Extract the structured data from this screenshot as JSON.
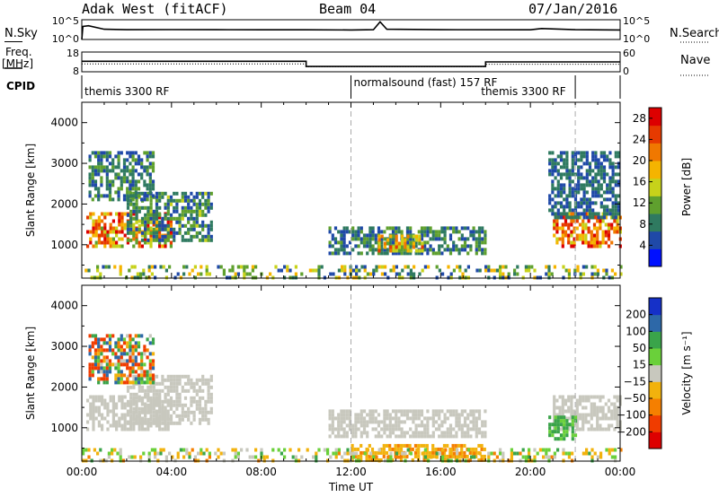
{
  "header": {
    "station": "Adak West (fitACF)",
    "beam": "Beam 04",
    "date": "07/Jan/2016"
  },
  "left_labels": {
    "nsky": "N.Sky",
    "freq": "Freq.",
    "mhz": "[MHz]",
    "cpid": "CPID"
  },
  "right_labels": {
    "nsearch": "N.Search",
    "nave": "Nave"
  },
  "noise_axis": {
    "left_ticks": [
      "10^5",
      "10^0"
    ],
    "right_ticks": [
      "10^5",
      "10^0"
    ]
  },
  "freq_axis": {
    "left_ticks": [
      "18",
      "8"
    ],
    "right_ticks": [
      "60",
      "0"
    ]
  },
  "cpid_segments": [
    {
      "label": "themis 3300 RF"
    },
    {
      "label": "normalsound (fast) 157 RF"
    },
    {
      "label": "themis 3300 RF"
    }
  ],
  "x_axis": {
    "title": "Time UT",
    "ticks": [
      "00:00",
      "04:00",
      "08:00",
      "12:00",
      "16:00",
      "20:00",
      "00:00"
    ]
  },
  "colors": {
    "power": [
      "#0010ff",
      "#1f49a8",
      "#2f7a60",
      "#5fa02e",
      "#c7d21a",
      "#f5b400",
      "#f07800",
      "#e63a00",
      "#dd0000"
    ],
    "velocity": [
      "#dd0000",
      "#f03c00",
      "#f57f00",
      "#f2b20d",
      "#c8c8be",
      "#6ad03a",
      "#3aa44a",
      "#2d68a8",
      "#1530c8"
    ]
  },
  "chart_data": [
    {
      "type": "line",
      "panel": "noise",
      "ylabel_left": "N.Sky",
      "ylabel_right": "N.Search",
      "scale": "log",
      "ylim": [
        1,
        100000
      ],
      "series": [
        {
          "name": "N.Sky",
          "style": "solid",
          "x": [
            0.0,
            0.05,
            0.3,
            1.0,
            2.0,
            4.0,
            6.0,
            8.0,
            10.0,
            12.0,
            13.0,
            13.3,
            13.6,
            16.0,
            20.0,
            20.5,
            22.0,
            24.0
          ],
          "y": [
            1,
            2000,
            3000,
            400,
            300,
            320,
            300,
            280,
            280,
            260,
            300,
            30000,
            400,
            300,
            280,
            600,
            300,
            250
          ]
        },
        {
          "name": "N.Search",
          "style": "dotted",
          "x": [
            0.0,
            24.0
          ],
          "y": [
            1,
            1
          ]
        }
      ]
    },
    {
      "type": "line",
      "panel": "frequency",
      "ylabel_left": "Freq. [MHz]",
      "ylabel_right": "Nave",
      "ylim": [
        8,
        18
      ],
      "series": [
        {
          "name": "Freq.",
          "style": "solid",
          "x": [
            0.0,
            10.0,
            10.0,
            18.0,
            18.0,
            24.0
          ],
          "y": [
            13.3,
            13.3,
            10.7,
            10.7,
            13.0,
            13.0
          ]
        },
        {
          "name": "Nave",
          "style": "dotted",
          "x": [
            0.0,
            10.0,
            10.0,
            18.0,
            18.0,
            24.0
          ],
          "y": [
            12.0,
            12.0,
            10.5,
            10.5,
            11.8,
            11.8
          ]
        }
      ]
    },
    {
      "type": "heatmap",
      "panel": "power",
      "ylabel": "Slant Range [km]",
      "xlabel": "Time UT",
      "xlim": [
        0,
        24
      ],
      "ylim": [
        180,
        4500
      ],
      "yticks": [
        1000,
        2000,
        3000,
        4000
      ],
      "colorbar": {
        "label": "Power [dB]",
        "ticks": [
          4,
          8,
          12,
          16,
          20,
          24,
          28
        ],
        "range": [
          0,
          30
        ]
      },
      "regions": [
        {
          "t": [
            0.2,
            4.0
          ],
          "r": [
            1000,
            1800
          ],
          "v": [
            12,
            30
          ]
        },
        {
          "t": [
            2.0,
            5.8
          ],
          "r": [
            1100,
            2300
          ],
          "v": [
            4,
            14
          ]
        },
        {
          "t": [
            0.3,
            3.2
          ],
          "r": [
            2100,
            3300
          ],
          "v": [
            4,
            12
          ]
        },
        {
          "t": [
            11.0,
            18.0
          ],
          "r": [
            750,
            1450
          ],
          "v": [
            4,
            12
          ]
        },
        {
          "t": [
            13.2,
            15.2
          ],
          "r": [
            850,
            1250
          ],
          "v": [
            10,
            24
          ]
        },
        {
          "t": [
            0.0,
            24.0
          ],
          "r": [
            200,
            500
          ],
          "v": [
            4,
            20
          ]
        },
        {
          "t": [
            21.0,
            24.0
          ],
          "r": [
            1000,
            1800
          ],
          "v": [
            14,
            30
          ]
        },
        {
          "t": [
            20.8,
            24.0
          ],
          "r": [
            1700,
            3300
          ],
          "v": [
            4,
            10
          ]
        }
      ]
    },
    {
      "type": "heatmap",
      "panel": "velocity",
      "ylabel": "Slant Range [km]",
      "xlabel": "Time UT",
      "xlim": [
        0,
        24
      ],
      "ylim": [
        180,
        4500
      ],
      "yticks": [
        1000,
        2000,
        3000,
        4000
      ],
      "colorbar": {
        "label": "Velocity [m s⁻¹]",
        "ticks": [
          "200",
          "100",
          "50",
          "15",
          "−15",
          "−50",
          "−100",
          "−200"
        ],
        "range": [
          -250,
          250
        ]
      },
      "regions": [
        {
          "t": [
            0.2,
            4.0
          ],
          "r": [
            1000,
            1800
          ],
          "v": [
            -10,
            10
          ]
        },
        {
          "t": [
            2.0,
            5.8
          ],
          "r": [
            1100,
            2300
          ],
          "v": [
            -10,
            10
          ]
        },
        {
          "t": [
            0.3,
            3.2
          ],
          "r": [
            2100,
            3300
          ],
          "v": [
            -200,
            150
          ]
        },
        {
          "t": [
            11.0,
            18.0
          ],
          "r": [
            750,
            1450
          ],
          "v": [
            -10,
            10
          ]
        },
        {
          "t": [
            12.0,
            18.0
          ],
          "r": [
            180,
            600
          ],
          "v": [
            -60,
            -30
          ]
        },
        {
          "t": [
            0.0,
            24.0
          ],
          "r": [
            200,
            500
          ],
          "v": [
            -60,
            60
          ]
        },
        {
          "t": [
            21.0,
            24.0
          ],
          "r": [
            1000,
            1800
          ],
          "v": [
            -10,
            10
          ]
        },
        {
          "t": [
            20.8,
            22.0
          ],
          "r": [
            700,
            1300
          ],
          "v": [
            30,
            80
          ]
        }
      ]
    }
  ]
}
